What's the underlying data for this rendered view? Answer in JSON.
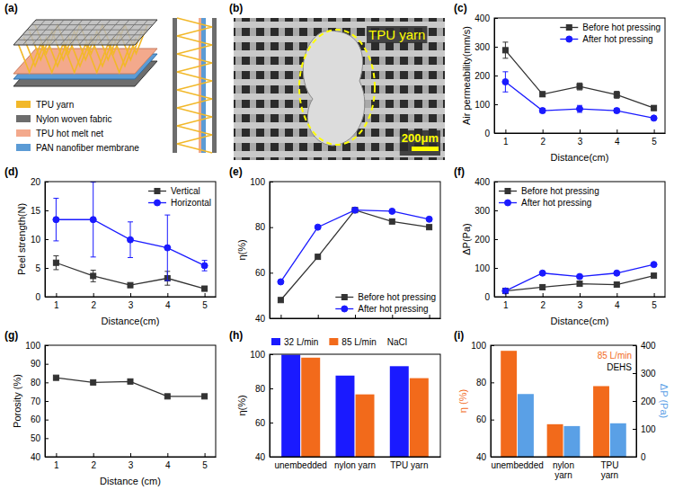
{
  "chart_data": [
    {
      "type": "diagram",
      "title": "(a)",
      "categories": [
        "TPU yarn",
        "Nylon woven fabric",
        "TPU hot melt net",
        "PAN nanofiber membrane"
      ],
      "colors": [
        "#f2b829",
        "#6d6d6d",
        "#f3a98c",
        "#5b9bd5"
      ]
    },
    {
      "type": "image",
      "title": "(b)",
      "annotations": [
        {
          "text": "TPU yarn",
          "color": "#ffff00"
        },
        {
          "text": "200μm",
          "color": "#ffff00"
        }
      ]
    },
    {
      "type": "line",
      "title": "(c)",
      "xlabel": "Distance(cm)",
      "ylabel": "Air permeability(mm/s)",
      "x": [
        1,
        2,
        3,
        4,
        5
      ],
      "xlim": [
        0.7,
        5.3
      ],
      "xticks": [
        1,
        2,
        3,
        4,
        5
      ],
      "ylim": [
        0,
        400
      ],
      "yticks": [
        0,
        100,
        200,
        300,
        400
      ],
      "grid": false,
      "legend": "upper right",
      "series": [
        {
          "name": "Before hot pressing",
          "color": "#333333",
          "marker": "square",
          "line_style": "solid",
          "values": [
            288,
            135,
            162,
            133,
            87
          ],
          "errors": [
            28,
            8,
            12,
            12,
            8
          ]
        },
        {
          "name": "After hot pressing",
          "color": "#1a1aff",
          "marker": "circle",
          "line_style": "solid",
          "values": [
            178,
            78,
            84,
            78,
            52
          ],
          "errors": [
            35,
            8,
            12,
            8,
            4
          ]
        }
      ]
    },
    {
      "type": "line",
      "title": "(d)",
      "xlabel": "Distance(cm)",
      "ylabel": "Peel strength(N)",
      "x": [
        1,
        2,
        3,
        4,
        5
      ],
      "xlim": [
        0.7,
        5.3
      ],
      "xticks": [
        1,
        2,
        3,
        4,
        5
      ],
      "ylim": [
        0,
        20
      ],
      "yticks": [
        0,
        5,
        10,
        15,
        20
      ],
      "grid": false,
      "legend": "upper right",
      "series": [
        {
          "name": "Vertical",
          "color": "#333333",
          "marker": "square",
          "line_style": "solid",
          "values": [
            5.9,
            3.6,
            2.0,
            3.2,
            1.4
          ],
          "errors": [
            1.2,
            1.0,
            0.2,
            1.2,
            0.4
          ]
        },
        {
          "name": "Horizontal",
          "color": "#1a1aff",
          "marker": "circle",
          "line_style": "solid",
          "values": [
            13.4,
            13.4,
            9.9,
            8.5,
            5.4
          ],
          "errors": [
            3.7,
            6.5,
            3.1,
            5.7,
            0.9
          ]
        }
      ]
    },
    {
      "type": "line",
      "title": "(e)",
      "ylabel": "η(%)",
      "tick_labels": "y",
      "x": [
        1,
        2,
        3,
        4,
        5
      ],
      "xlim": [
        0.7,
        5.3
      ],
      "xticks": [
        1,
        2,
        3,
        4,
        5
      ],
      "ylim": [
        40,
        100
      ],
      "yticks": [
        40,
        60,
        80,
        100
      ],
      "grid": false,
      "legend": "lower right",
      "series": [
        {
          "name": "Before hot pressing",
          "color": "#333333",
          "marker": "square",
          "line_style": "solid",
          "values": [
            48,
            67,
            87.5,
            82.5,
            80
          ]
        },
        {
          "name": "After hot pressing",
          "color": "#1a1aff",
          "marker": "circle",
          "line_style": "solid",
          "values": [
            56,
            80,
            87.5,
            87,
            83.5
          ]
        }
      ]
    },
    {
      "type": "line",
      "title": "(f)",
      "xlabel": "Distance(cm)",
      "ylabel": "ΔP(Pa)",
      "x": [
        1,
        2,
        3,
        4,
        5
      ],
      "xlim": [
        0.7,
        5.3
      ],
      "xticks": [
        1,
        2,
        3,
        4,
        5
      ],
      "ylim": [
        0,
        400
      ],
      "yticks": [
        0,
        100,
        200,
        300,
        400
      ],
      "grid": false,
      "legend": "upper left",
      "series": [
        {
          "name": "Before hot pressing",
          "color": "#333333",
          "marker": "square",
          "line_style": "solid",
          "values": [
            20,
            33,
            45,
            42,
            73
          ]
        },
        {
          "name": "After hot pressing",
          "color": "#1a1aff",
          "marker": "circle",
          "line_style": "solid",
          "values": [
            20,
            82,
            70,
            82,
            112
          ]
        }
      ]
    },
    {
      "type": "line",
      "title": "(g)",
      "xlabel": "Distance (cm)",
      "ylabel": "Porosity (%)",
      "x": [
        1,
        2,
        3,
        4,
        5
      ],
      "xlim": [
        0.7,
        5.3
      ],
      "xticks": [
        1,
        2,
        3,
        4,
        5
      ],
      "ylim": [
        40,
        100
      ],
      "yticks": [
        40,
        50,
        60,
        70,
        80,
        90,
        100
      ],
      "grid": false,
      "series": [
        {
          "color": "#333333",
          "marker": "square",
          "line_style": "solid",
          "values": [
            82.5,
            80,
            80.5,
            72.5,
            72.5
          ]
        }
      ]
    },
    {
      "type": "bar",
      "title": "(h)",
      "ylabel": "η(%)",
      "categories": [
        "unembedded",
        "nylon yarn",
        "TPU yarn"
      ],
      "ylim": [
        40,
        100
      ],
      "yticks": [
        40,
        60,
        80,
        100
      ],
      "grid": false,
      "legend": "top",
      "annotations": [
        {
          "text": "NaCl",
          "color": "#000000"
        }
      ],
      "series": [
        {
          "name": "32 L/min",
          "color": "#1a1aff",
          "values": [
            99.7,
            87.5,
            93
          ]
        },
        {
          "name": "85 L/min",
          "color": "#f26a1b",
          "values": [
            98,
            76.5,
            86
          ]
        }
      ]
    },
    {
      "type": "bar",
      "title": "(i)",
      "ylabel": "η (%)",
      "y2label": "ΔP (Pa)",
      "categories": [
        "unembedded",
        "nylon yarn",
        "TPU yarn"
      ],
      "ylim": [
        40,
        100
      ],
      "yticks": [
        40,
        60,
        80,
        100
      ],
      "y2lim": [
        0,
        400
      ],
      "y2ticks": [
        0,
        100,
        200,
        300,
        400
      ],
      "grid": false,
      "annotations": [
        {
          "text": "85 L/min",
          "color": "#f26a1b"
        },
        {
          "text": "DEHS",
          "color": "#000000"
        }
      ],
      "series": [
        {
          "color": "#f26a1b",
          "values": [
            97,
            57.5,
            78
          ]
        },
        {
          "color": "#5aa0e6",
          "axis": "y2",
          "values": [
            225,
            110,
            120
          ]
        }
      ]
    }
  ]
}
